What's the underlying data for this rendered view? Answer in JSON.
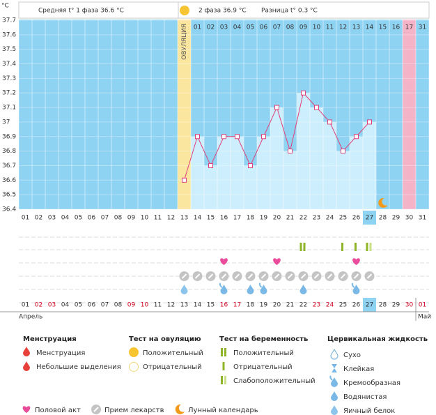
{
  "header": {
    "phase1": "Средняя t° 1 фаза 36.6 °C",
    "phase2": "2 фаза 36.9 °C",
    "diff": "Разница t° 0.3 °C"
  },
  "chart_data": {
    "type": "line",
    "y_unit": "°C",
    "ovulation_label": "ОВУЛЯЦИЯ",
    "categories": [
      "01",
      "02",
      "03",
      "04",
      "05",
      "06",
      "07",
      "08",
      "09",
      "10",
      "11",
      "12",
      "13",
      "14",
      "15",
      "16",
      "17",
      "18",
      "19",
      "20",
      "21",
      "22",
      "23",
      "24",
      "25",
      "26",
      "27",
      "28",
      "29",
      "30",
      "31"
    ],
    "series": [
      {
        "color": "#e0407a",
        "values": [
          null,
          null,
          null,
          null,
          null,
          null,
          null,
          null,
          null,
          null,
          null,
          null,
          36.6,
          36.9,
          36.7,
          36.9,
          36.9,
          36.7,
          36.9,
          37.1,
          36.8,
          37.2,
          37.1,
          37.0,
          36.8,
          36.9,
          37.0,
          null,
          null,
          null,
          null
        ]
      }
    ],
    "ylim": [
      36.4,
      37.7
    ],
    "yticks": [
      36.4,
      36.5,
      36.6,
      36.7,
      36.8,
      36.9,
      37,
      37.1,
      37.2,
      37.3,
      37.4,
      37.5,
      37.6,
      37.7
    ],
    "cycle_days": [
      "01",
      "02",
      "03",
      "04",
      "05",
      "06",
      "07",
      "08",
      "09",
      "10",
      "11",
      "12",
      "13",
      "14",
      "15",
      "16",
      "17",
      "31"
    ],
    "cycle_days_from": 14,
    "ovulation_day": 13,
    "pink_day": 30,
    "today": 27,
    "moon_day": 28,
    "grid": true
  },
  "calendar": {
    "dates": [
      "01",
      "02",
      "03",
      "04",
      "05",
      "06",
      "07",
      "08",
      "09",
      "10",
      "11",
      "12",
      "13",
      "14",
      "15",
      "16",
      "17",
      "18",
      "19",
      "20",
      "21",
      "22",
      "23",
      "24",
      "25",
      "26",
      "27",
      "28",
      "29",
      "30",
      "01"
    ],
    "weekend": [
      2,
      3,
      9,
      10,
      16,
      17,
      23,
      24,
      30,
      31
    ],
    "month1": "Апрель",
    "month2": "Май"
  },
  "events": {
    "pregnancy_tests": [
      {
        "day": 22,
        "kind": 0
      },
      {
        "day": 25,
        "kind": 1
      },
      {
        "day": 26,
        "kind": 1
      },
      {
        "day": 27,
        "kind": 2
      }
    ],
    "sex": [
      16,
      20,
      26
    ],
    "pills": [
      13,
      14,
      15,
      16,
      17,
      18,
      19,
      20,
      21,
      22,
      23,
      24,
      25,
      26,
      27
    ],
    "cervical": [
      {
        "day": 13,
        "kind": 4
      },
      {
        "day": 16,
        "kind": 2
      },
      {
        "day": 18,
        "kind": 3
      },
      {
        "day": 19,
        "kind": 2
      },
      {
        "day": 22,
        "kind": 3
      },
      {
        "day": 26,
        "kind": 2
      }
    ]
  },
  "legend": {
    "menstruation": {
      "title": "Менструация",
      "items": [
        "Менструация",
        "Небольшие выделения"
      ]
    },
    "ovulation_test": {
      "title": "Тест на овуляцию",
      "items": [
        "Положительный",
        "Отрицательный"
      ]
    },
    "pregnancy_test": {
      "title": "Тест на беременность",
      "items": [
        "Положительный",
        "Отрицательный",
        "Слабоположительный"
      ]
    },
    "cervical": {
      "title": "Цервикальная жидкость",
      "items": [
        "Сухо",
        "Клейкая",
        "Кремообразная",
        "Водянистая",
        "Яичный белок"
      ]
    },
    "other": [
      "Половой акт",
      "Прием лекарств",
      "Лунный календарь"
    ]
  }
}
